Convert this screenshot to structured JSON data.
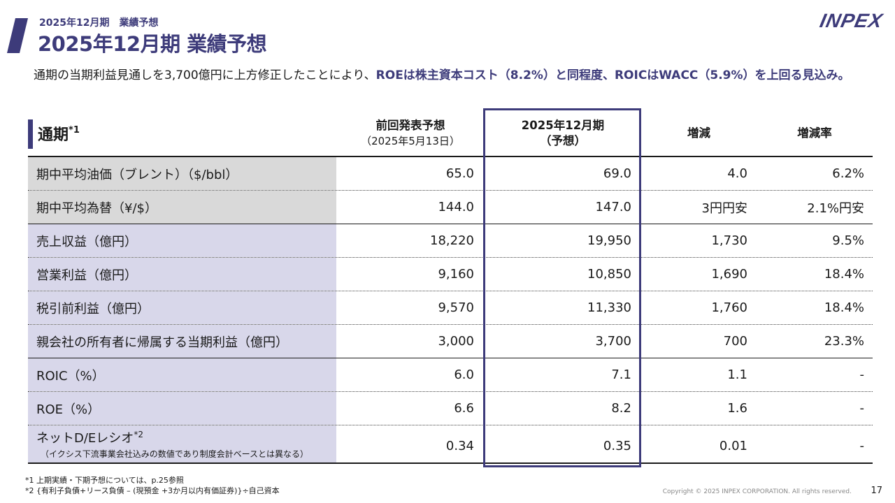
{
  "header": {
    "kicker": "2025年12月期　業績予想",
    "title": "2025年12月期 業績予想",
    "logo": "INPEX"
  },
  "intro": {
    "plain": "通期の当期利益見通しを3,700億円に上方修正したことにより、",
    "emphasis": "ROEは株主資本コスト（8.2%）と同程度、ROICはWACC（5.9%）を上回る見込み。"
  },
  "table": {
    "section_title": "通期",
    "section_mark": "*1",
    "columns": [
      {
        "label": "前回発表予想",
        "sub": "（2025年5月13日）"
      },
      {
        "label": "2025年12月期",
        "sub": "（予想）"
      },
      {
        "label": "増減",
        "sub": ""
      },
      {
        "label": "増減率",
        "sub": ""
      }
    ],
    "rows": [
      {
        "label": "期中平均油価（ブレント）（$/bbl）",
        "values": [
          "65.0",
          "69.0",
          "4.0",
          "6.2%"
        ]
      },
      {
        "label": "期中平均為替（¥/$）",
        "values": [
          "144.0",
          "147.0",
          "3円円安",
          "2.1%円安"
        ]
      },
      {
        "label": "売上収益（億円）",
        "values": [
          "18,220",
          "19,950",
          "1,730",
          "9.5%"
        ]
      },
      {
        "label": "営業利益（億円）",
        "values": [
          "9,160",
          "10,850",
          "1,690",
          "18.4%"
        ]
      },
      {
        "label": "税引前利益（億円）",
        "values": [
          "9,570",
          "11,330",
          "1,760",
          "18.4%"
        ]
      },
      {
        "label": "親会社の所有者に帰属する当期利益（億円）",
        "values": [
          "3,000",
          "3,700",
          "700",
          "23.3%"
        ]
      },
      {
        "label": "ROIC（%）",
        "values": [
          "6.0",
          "7.1",
          "1.1",
          "-"
        ]
      },
      {
        "label": "ROE（%）",
        "values": [
          "6.6",
          "8.2",
          "1.6",
          "-"
        ]
      },
      {
        "label": "ネットD/Eレシオ",
        "mark": "*2",
        "note": "（イクシス下流事業会社込みの数値であり制度会計ベースとは異なる）",
        "values": [
          "0.34",
          "0.35",
          "0.01",
          "-"
        ]
      }
    ]
  },
  "footnotes": {
    "fn1": "*1 上期実績・下期予想については、p.25参照",
    "fn2": "*2 {有利子負債+リース負債 – (現預金 +3か月以内有価証券)}÷自己資本"
  },
  "footer": {
    "copyright": "Copyright © 2025 INPEX CORPORATION. All rights reserved.",
    "page_number": "17"
  }
}
